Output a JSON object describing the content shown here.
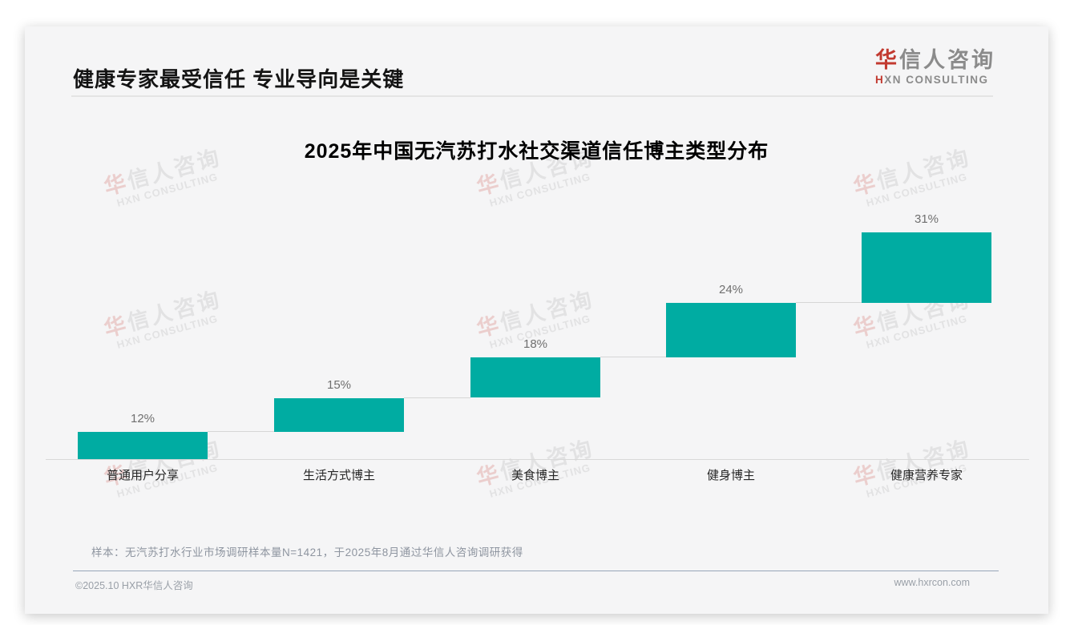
{
  "header": {
    "title": "健康专家最受信任 专业导向是关键",
    "logo": {
      "zh_first": "华",
      "zh_rest": "信人咨询",
      "en_first": "H",
      "en_rest": "XN CONSULTING"
    }
  },
  "watermark": {
    "line1_first": "华",
    "line1_rest": "信人咨询",
    "line2": "HXN CONSULTING"
  },
  "chart_data": {
    "type": "bar",
    "subtype": "cumulative-waterfall",
    "title": "2025年中国无汽苏打水社交渠道信任博主类型分布",
    "categories": [
      "普通用户分享",
      "生活方式博主",
      "美食博主",
      "健身博主",
      "健康营养专家"
    ],
    "values": [
      12,
      15,
      18,
      24,
      31
    ],
    "value_labels": [
      "12%",
      "15%",
      "18%",
      "24%",
      "31%"
    ],
    "unit": "%",
    "ylim": [
      0,
      100
    ],
    "grid": false,
    "legend": false,
    "bar_color": "#00aca2",
    "axis_color": "#d8d8d8",
    "label_color": "#6f6f6f"
  },
  "footnote": {
    "text": "样本：无汽苏打水行业市场调研样本量N=1421，于2025年8月通过华信人咨询调研获得"
  },
  "footer": {
    "copyright": "©2025.10 HXR华信人咨询",
    "website": "www.hxrcon.com"
  }
}
